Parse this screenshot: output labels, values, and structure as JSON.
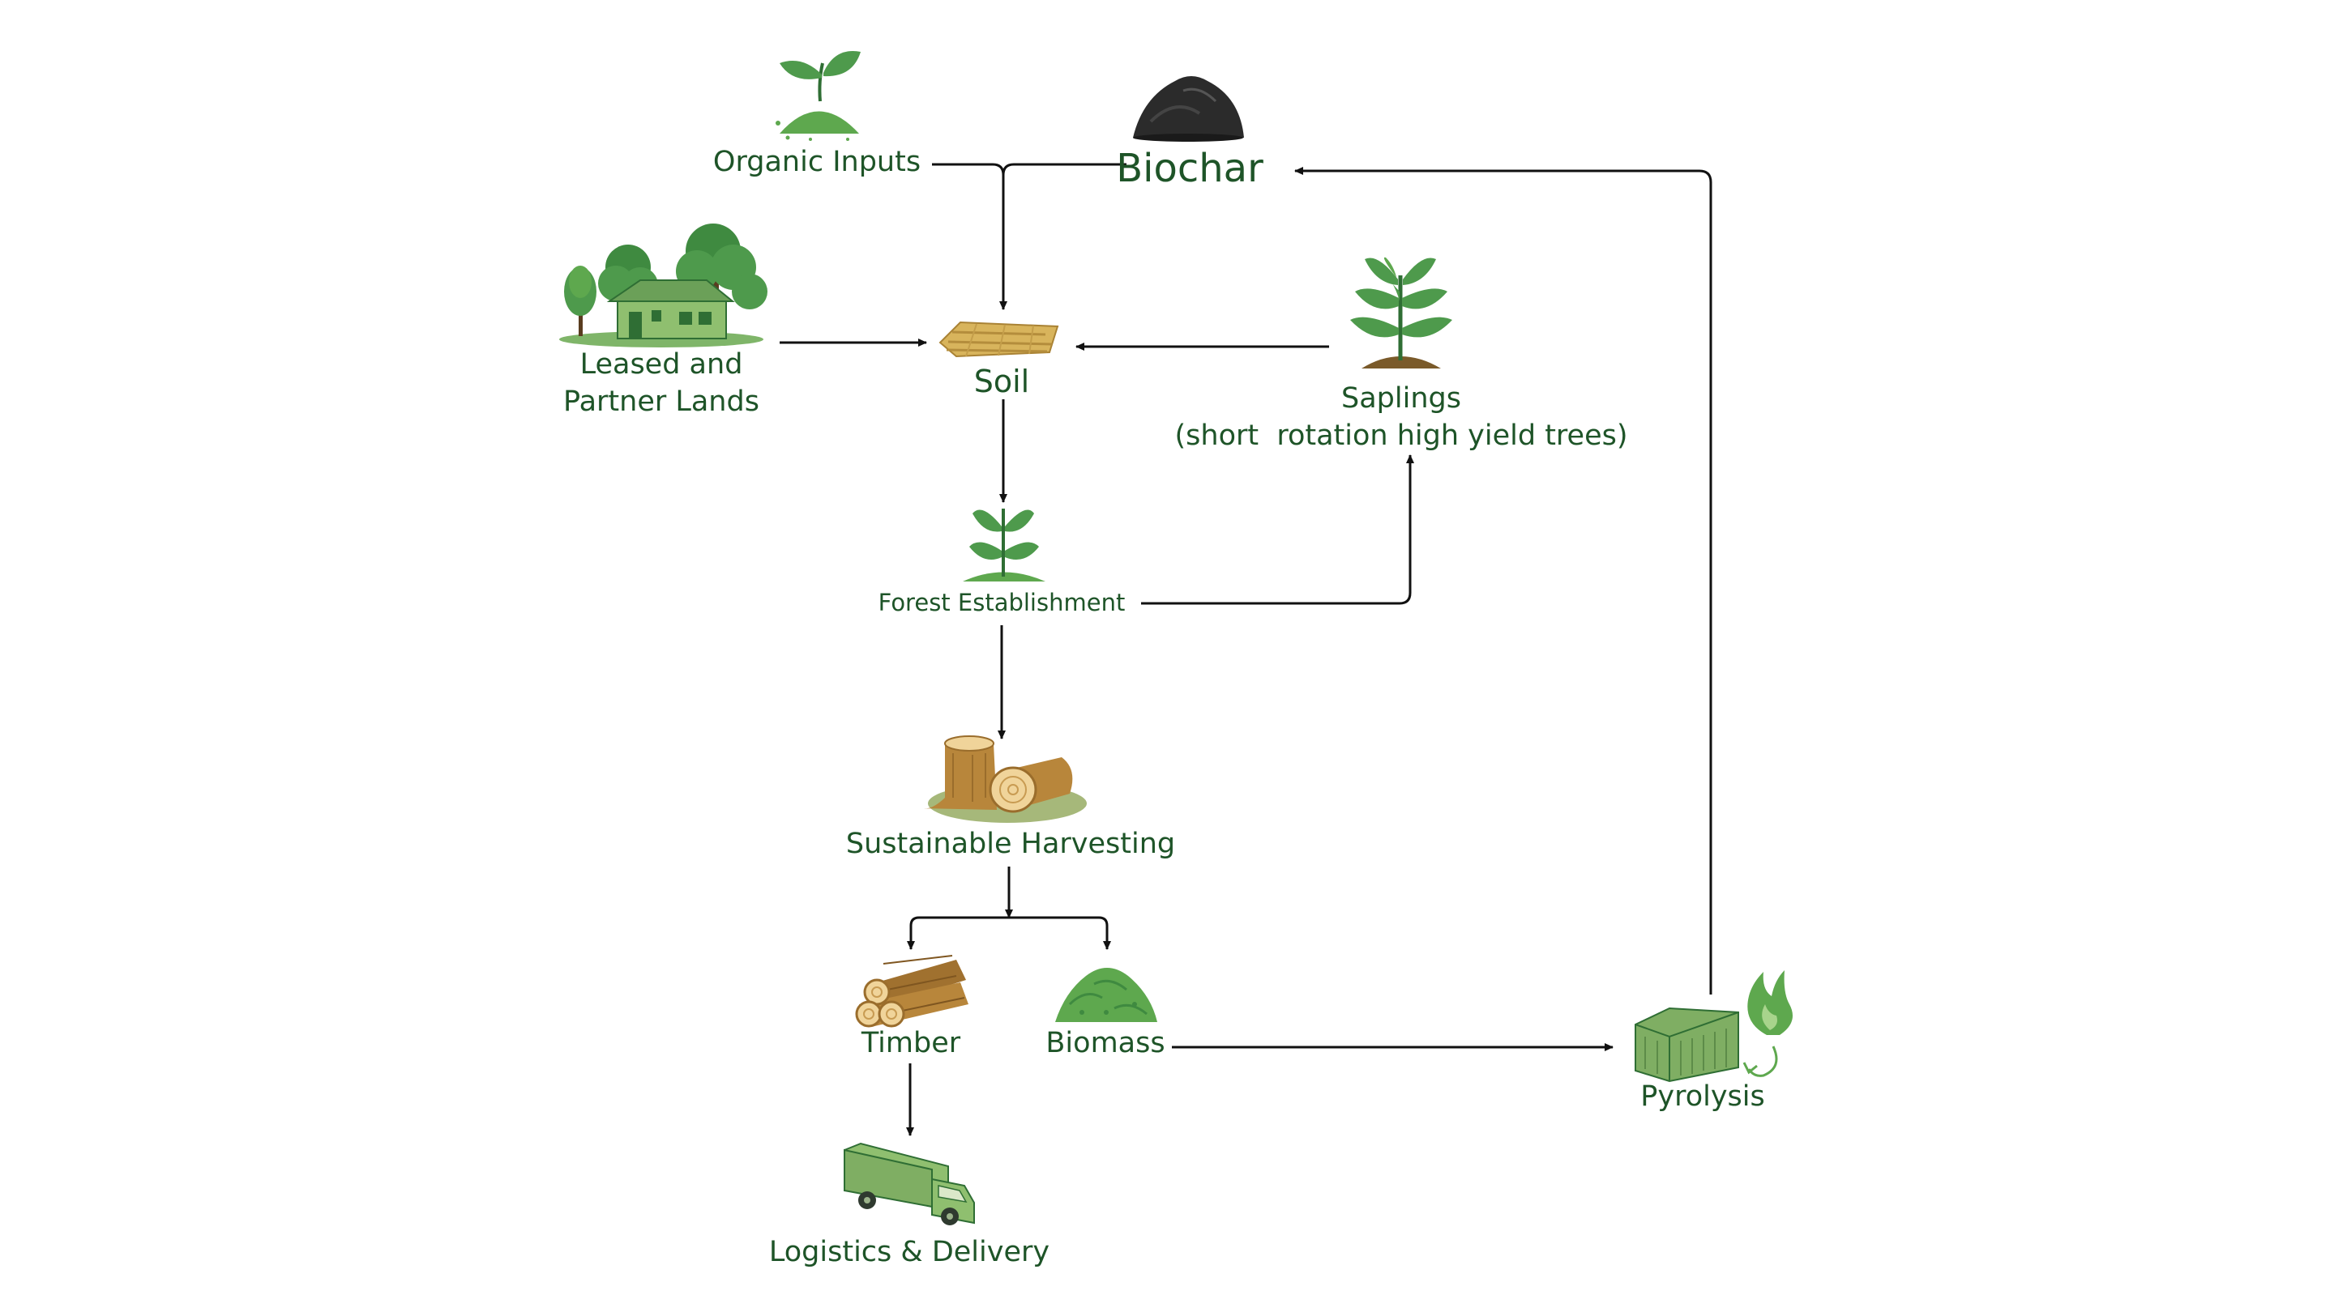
{
  "diagram": {
    "nodes": {
      "organic_inputs": {
        "label": "Organic Inputs",
        "icon": "sprout-mound-icon"
      },
      "biochar": {
        "label": "Biochar",
        "icon": "charcoal-pile-icon"
      },
      "leased_lands": {
        "label_line1": "Leased and",
        "label_line2": "Partner Lands",
        "icon": "farmhouse-trees-icon"
      },
      "soil": {
        "label": "Soil",
        "icon": "soil-plot-icon"
      },
      "saplings": {
        "label_line1": "Saplings",
        "label_line2": "(short  rotation high yield trees)",
        "icon": "sapling-icon"
      },
      "forest_establishment": {
        "label": "Forest Establishment",
        "icon": "seedling-icon"
      },
      "sustainable_harvesting": {
        "label": "Sustainable Harvesting",
        "icon": "tree-stump-log-icon"
      },
      "timber": {
        "label": "Timber",
        "icon": "log-stack-icon"
      },
      "biomass": {
        "label": "Biomass",
        "icon": "biomass-pile-icon"
      },
      "pyrolysis": {
        "label": "Pyrolysis",
        "icon": "container-flame-icon"
      },
      "logistics": {
        "label": "Logistics & Delivery",
        "icon": "truck-icon"
      }
    },
    "colors": {
      "text": "#1e5428",
      "leaf": "#4e9a4c",
      "leaf_dark": "#2f6e34",
      "biomass": "#5ea84e",
      "wood": "#b8863b",
      "wood_light": "#f0d49a",
      "charcoal": "#2b2b2b",
      "container": "#7fae63",
      "arrow": "#111111"
    }
  }
}
